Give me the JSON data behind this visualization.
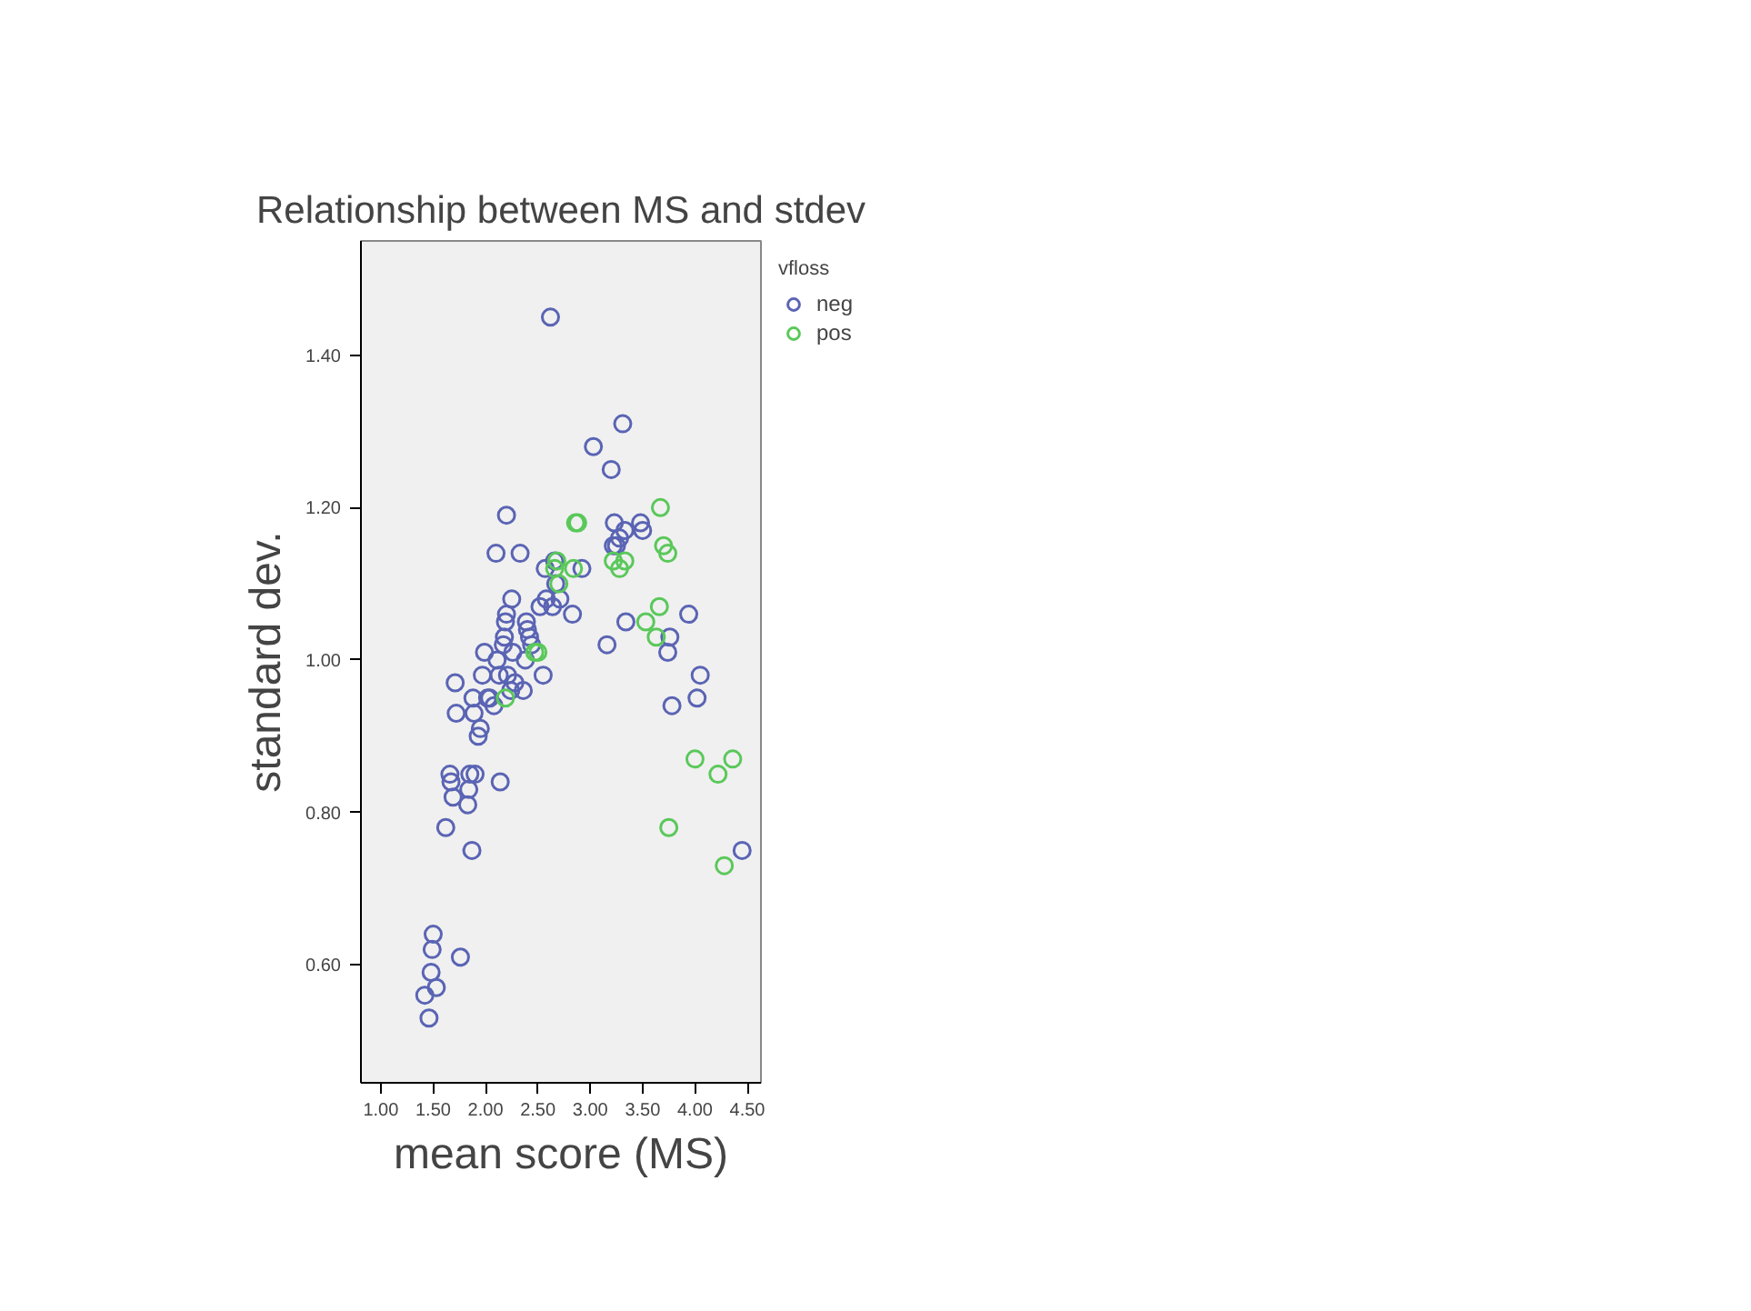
{
  "chart_data": {
    "type": "scatter",
    "title": "Relationship between MS and stdev",
    "xlabel": "mean score (MS)",
    "ylabel": "standard dev.",
    "legend_title": "vfloss",
    "legend": "top right",
    "marker": "circle",
    "grid": false,
    "xlim": [
      0.81,
      4.63
    ],
    "ylim": [
      0.445,
      1.55
    ],
    "xticks": [
      {
        "value": 1.0,
        "label": "1.00"
      },
      {
        "value": 1.5,
        "label": "1.50"
      },
      {
        "value": 2.0,
        "label": "2.00"
      },
      {
        "value": 2.5,
        "label": "2.50"
      },
      {
        "value": 3.0,
        "label": "3.00"
      },
      {
        "value": 3.5,
        "label": "3.50"
      },
      {
        "value": 4.0,
        "label": "4.00"
      },
      {
        "value": 4.5,
        "label": "4.50"
      }
    ],
    "yticks": [
      {
        "value": 0.6,
        "label": "0.60"
      },
      {
        "value": 0.8,
        "label": "0.80"
      },
      {
        "value": 1.0,
        "label": "1.00"
      },
      {
        "value": 1.2,
        "label": "1.20"
      },
      {
        "value": 1.4,
        "label": "1.40"
      }
    ],
    "series": [
      {
        "name": "neg",
        "color": "#5a64b4",
        "x": [
          1.42,
          1.46,
          1.48,
          1.49,
          1.5,
          1.53,
          1.62,
          1.66,
          1.67,
          1.69,
          1.71,
          1.72,
          1.76,
          1.83,
          1.84,
          1.85,
          1.87,
          1.88,
          1.89,
          1.9,
          1.93,
          1.95,
          1.97,
          1.99,
          2.02,
          2.04,
          2.08,
          2.1,
          2.11,
          2.13,
          2.14,
          2.17,
          2.18,
          2.19,
          2.2,
          2.2,
          2.21,
          2.24,
          2.25,
          2.26,
          2.28,
          2.33,
          2.36,
          2.38,
          2.39,
          2.4,
          2.42,
          2.44,
          2.52,
          2.55,
          2.57,
          2.58,
          2.62,
          2.64,
          2.66,
          2.67,
          2.71,
          2.83,
          2.92,
          3.03,
          3.16,
          3.2,
          3.22,
          3.23,
          3.25,
          3.28,
          3.31,
          3.33,
          3.34,
          3.48,
          3.5,
          3.74,
          3.76,
          3.78,
          3.94,
          4.02,
          4.05,
          4.45
        ],
        "values": [
          0.56,
          0.53,
          0.59,
          0.62,
          0.64,
          0.57,
          0.78,
          0.85,
          0.84,
          0.82,
          0.97,
          0.93,
          0.61,
          0.81,
          0.83,
          0.85,
          0.75,
          0.95,
          0.93,
          0.85,
          0.9,
          0.91,
          0.98,
          1.01,
          0.95,
          0.95,
          0.94,
          1.14,
          1.0,
          0.98,
          0.84,
          1.02,
          1.03,
          1.05,
          1.06,
          1.19,
          0.98,
          0.96,
          1.08,
          1.01,
          0.97,
          1.14,
          0.96,
          1.0,
          1.05,
          1.04,
          1.03,
          1.02,
          1.07,
          0.98,
          1.12,
          1.08,
          1.45,
          1.07,
          1.13,
          1.1,
          1.08,
          1.06,
          1.12,
          1.28,
          1.02,
          1.25,
          1.15,
          1.18,
          1.15,
          1.16,
          1.31,
          1.17,
          1.05,
          1.18,
          1.17,
          1.01,
          1.03,
          0.94,
          1.06,
          0.95,
          0.98,
          0.75
        ]
      },
      {
        "name": "pos",
        "color": "#5ac85a",
        "x": [
          2.19,
          2.47,
          2.5,
          2.66,
          2.68,
          2.7,
          2.84,
          2.86,
          2.88,
          3.22,
          3.28,
          3.33,
          3.53,
          3.63,
          3.66,
          3.67,
          3.7,
          3.74,
          3.75,
          4.0,
          4.22,
          4.28,
          4.36
        ],
        "values": [
          0.95,
          1.01,
          1.01,
          1.12,
          1.13,
          1.1,
          1.12,
          1.18,
          1.18,
          1.13,
          1.12,
          1.13,
          1.05,
          1.03,
          1.07,
          1.2,
          1.15,
          1.14,
          0.78,
          0.87,
          0.85,
          0.73,
          0.87
        ]
      }
    ]
  }
}
